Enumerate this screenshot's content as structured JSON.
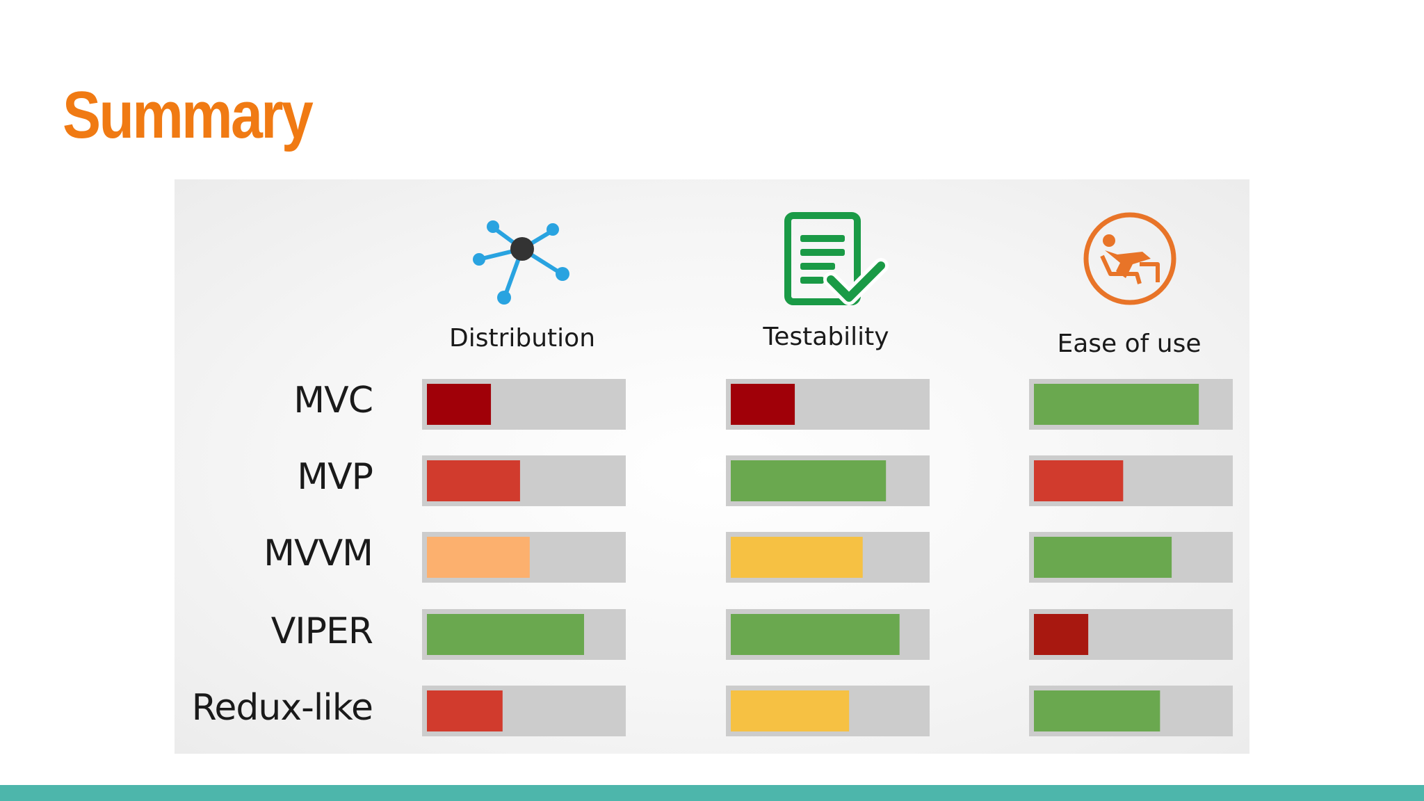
{
  "slide": {
    "title": "Summary",
    "title_color": "#f07a13",
    "band_color": "#4db6ab"
  },
  "chart_data": {
    "type": "bar",
    "orientation": "horizontal",
    "value_scale": [
      0,
      1
    ],
    "columns": [
      {
        "label": "Distribution",
        "icon": "network-icon"
      },
      {
        "label": "Testability",
        "icon": "checklist-icon"
      },
      {
        "label": "Ease of use",
        "icon": "reclining-person-icon"
      }
    ],
    "rows": [
      "MVC",
      "MVP",
      "MVVM",
      "VIPER",
      "Redux-like"
    ],
    "values": [
      [
        0.33,
        0.33,
        0.85
      ],
      [
        0.48,
        0.8,
        0.46
      ],
      [
        0.53,
        0.68,
        0.71
      ],
      [
        0.81,
        0.87,
        0.28
      ],
      [
        0.39,
        0.61,
        0.65
      ]
    ],
    "bar_colors": [
      [
        "#a00008",
        "#a00008",
        "#6aa84f"
      ],
      [
        "#d13b2d",
        "#6aa84f",
        "#d13b2d"
      ],
      [
        "#fcb06e",
        "#f6c143",
        "#6aa84f"
      ],
      [
        "#6aa84f",
        "#6aa84f",
        "#a81810"
      ],
      [
        "#d13b2d",
        "#f6c143",
        "#6aa84f"
      ]
    ],
    "track_color": "#cccccc",
    "legend": "none",
    "grid": false
  }
}
